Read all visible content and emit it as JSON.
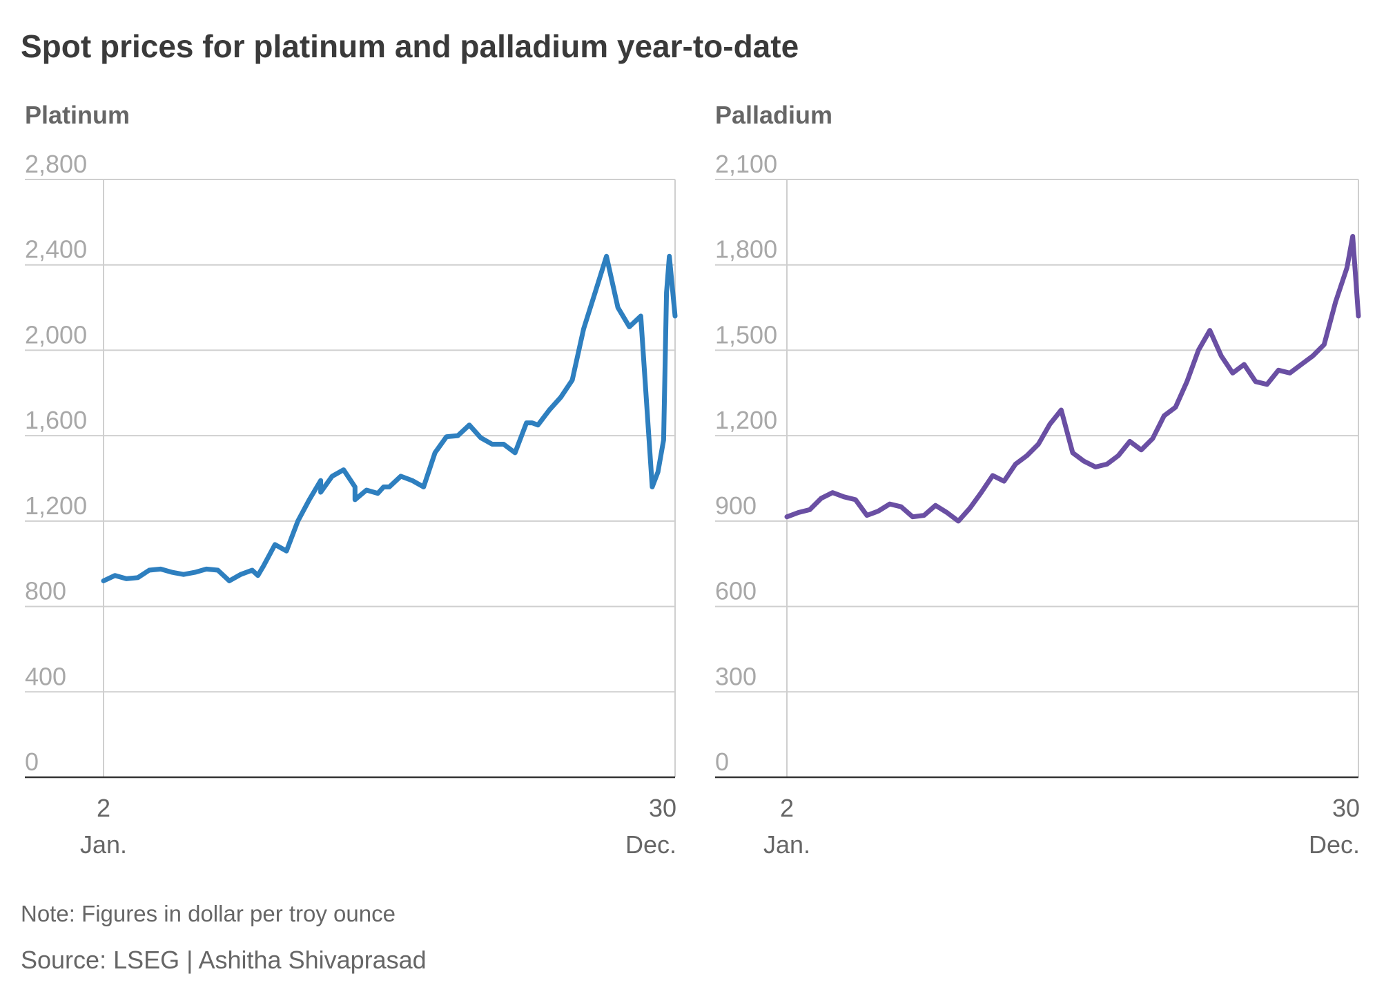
{
  "title": "Spot prices for platinum and palladium year-to-date",
  "note": "Note: Figures in dollar per troy ounce",
  "source": "Source: LSEG | Ashitha Shivaprasad",
  "colors": {
    "platinum": "#2e7fbf",
    "palladium": "#6a4fa3",
    "grid": "#cfcfcf",
    "axis": "#333333",
    "tick": "#a8a8a8"
  },
  "chart_data": [
    {
      "type": "line",
      "title": "Platinum",
      "x_tick_labels": [
        {
          "day": "2",
          "month": "Jan."
        },
        {
          "day": "30",
          "month": "Dec."
        }
      ],
      "y_ticks": [
        0,
        400,
        800,
        1200,
        1600,
        2000,
        2400,
        2800
      ],
      "y_tick_labels": [
        "0",
        "400",
        "800",
        "1,200",
        "1,600",
        "2,000",
        "2,400",
        "2,800"
      ],
      "ylim": [
        0,
        2800
      ],
      "x": [
        0.0,
        0.02,
        0.04,
        0.06,
        0.08,
        0.1,
        0.12,
        0.14,
        0.16,
        0.18,
        0.2,
        0.22,
        0.24,
        0.26,
        0.27,
        0.28,
        0.3,
        0.32,
        0.34,
        0.36,
        0.38,
        0.38,
        0.4,
        0.42,
        0.44,
        0.44,
        0.46,
        0.48,
        0.49,
        0.5,
        0.52,
        0.54,
        0.56,
        0.58,
        0.6,
        0.62,
        0.64,
        0.66,
        0.68,
        0.7,
        0.72,
        0.74,
        0.75,
        0.76,
        0.78,
        0.8,
        0.82,
        0.84,
        0.86,
        0.88,
        0.9,
        0.92,
        0.94,
        0.96,
        0.97,
        0.98,
        0.985,
        0.99,
        1.0
      ],
      "y": [
        920,
        945,
        930,
        935,
        970,
        975,
        960,
        950,
        960,
        975,
        970,
        920,
        950,
        970,
        945,
        990,
        1090,
        1060,
        1200,
        1300,
        1390,
        1335,
        1410,
        1440,
        1360,
        1300,
        1345,
        1330,
        1360,
        1360,
        1410,
        1390,
        1360,
        1520,
        1595,
        1600,
        1650,
        1590,
        1560,
        1560,
        1520,
        1660,
        1660,
        1650,
        1720,
        1780,
        1860,
        2100,
        2270,
        2440,
        2200,
        2110,
        2160,
        1360,
        1430,
        1580,
        2270,
        2440,
        2160
      ]
    },
    {
      "type": "line",
      "title": "Palladium",
      "x_tick_labels": [
        {
          "day": "2",
          "month": "Jan."
        },
        {
          "day": "30",
          "month": "Dec."
        }
      ],
      "y_ticks": [
        0,
        300,
        600,
        900,
        1200,
        1500,
        1800,
        2100
      ],
      "y_tick_labels": [
        "0",
        "300",
        "600",
        "900",
        "1,200",
        "1,500",
        "1,800",
        "2,100"
      ],
      "ylim": [
        0,
        2100
      ],
      "x": [
        0.0,
        0.02,
        0.04,
        0.06,
        0.08,
        0.1,
        0.12,
        0.14,
        0.16,
        0.18,
        0.2,
        0.22,
        0.24,
        0.26,
        0.28,
        0.3,
        0.32,
        0.34,
        0.36,
        0.38,
        0.4,
        0.42,
        0.44,
        0.46,
        0.48,
        0.5,
        0.52,
        0.54,
        0.56,
        0.58,
        0.6,
        0.62,
        0.64,
        0.66,
        0.68,
        0.7,
        0.72,
        0.74,
        0.76,
        0.78,
        0.8,
        0.82,
        0.84,
        0.86,
        0.88,
        0.9,
        0.92,
        0.94,
        0.96,
        0.98,
        0.99,
        1.0
      ],
      "y": [
        915,
        930,
        940,
        980,
        1000,
        985,
        975,
        920,
        935,
        960,
        950,
        915,
        920,
        955,
        930,
        900,
        945,
        1000,
        1060,
        1040,
        1100,
        1130,
        1170,
        1240,
        1290,
        1140,
        1110,
        1090,
        1100,
        1130,
        1180,
        1150,
        1190,
        1270,
        1300,
        1390,
        1500,
        1570,
        1480,
        1420,
        1450,
        1390,
        1380,
        1430,
        1420,
        1450,
        1480,
        1520,
        1670,
        1790,
        1900,
        1620
      ]
    }
  ]
}
